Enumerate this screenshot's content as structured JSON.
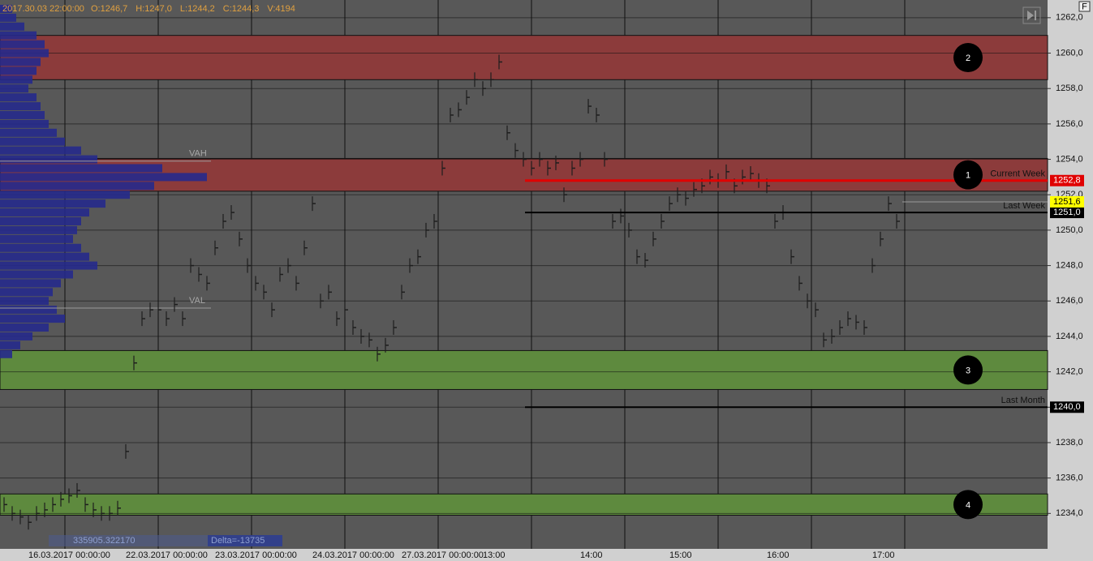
{
  "chart_data": {
    "type": "price-bars",
    "header": "2017.30.03 22:00:00",
    "info_labels": [
      "O:1246,7",
      "H:1247,0",
      "L:1244,2",
      "C:1244,3",
      "V:4194"
    ],
    "ylim": [
      1232,
      1263
    ],
    "yticks": [
      {
        "value": 1234,
        "label": "1234,0"
      },
      {
        "value": 1236,
        "label": "1236,0"
      },
      {
        "value": 1238,
        "label": "1238,0"
      },
      {
        "value": 1240,
        "label": "1240,0"
      },
      {
        "value": 1242,
        "label": "1242,0"
      },
      {
        "value": 1244,
        "label": "1244,0"
      },
      {
        "value": 1246,
        "label": "1246,0"
      },
      {
        "value": 1248,
        "label": "1248,0"
      },
      {
        "value": 1250,
        "label": "1250,0"
      },
      {
        "value": 1252,
        "label": "1252,0"
      },
      {
        "value": 1254,
        "label": "1254,0"
      },
      {
        "value": 1256,
        "label": "1256,0"
      },
      {
        "value": 1258,
        "label": "1258,0"
      },
      {
        "value": 1260,
        "label": "1260,0"
      },
      {
        "value": 1262,
        "label": "1262,0"
      }
    ],
    "grid": true,
    "color": "#1e1e1e",
    "categories": [
      null,
      null,
      null,
      "16.03.2017 00:00:00",
      null,
      null,
      null,
      null,
      null,
      null,
      null,
      null,
      null,
      null,
      null,
      "22.03.2017 00:00:00",
      null,
      null,
      null,
      null,
      null,
      null,
      null,
      null,
      null,
      null,
      "23.03.2017 00:00:00",
      null,
      null,
      null,
      null,
      null,
      null,
      null,
      null,
      null,
      null,
      null,
      "24.03.2017 00:00:00",
      null,
      null,
      null,
      null,
      null,
      null,
      null,
      null,
      null,
      null,
      "27.03.2017 00:00:00",
      null,
      null,
      null,
      null,
      null,
      null,
      null,
      null,
      null,
      "13:00",
      null,
      null,
      null,
      null,
      null,
      null,
      null,
      null,
      null,
      null,
      null,
      "14:00",
      null,
      null,
      null,
      null,
      null,
      null,
      null,
      null,
      null,
      null,
      "15:00",
      null,
      null,
      null,
      null,
      null,
      null,
      null,
      null,
      null,
      null,
      null,
      "16:00",
      null,
      null,
      null,
      null,
      null,
      null,
      null,
      null,
      null,
      null,
      null,
      null,
      "17:00",
      null,
      null,
      null
    ],
    "values": [
      1234.5,
      1234,
      1233.8,
      1233.5,
      1234,
      1234.2,
      1234.5,
      1234.8,
      1235,
      1235.3,
      1234.5,
      1234.2,
      1234,
      1234,
      1234.3,
      1237.5,
      1242.5,
      1245,
      1245.5,
      1245.5,
      1245,
      1245.8,
      1245,
      1248,
      1247.5,
      1247,
      1249,
      1250.5,
      1251,
      1249.5,
      1248,
      1247,
      1246.5,
      1245.5,
      1247.5,
      1248,
      1247,
      1249,
      1251.5,
      1246,
      1246.5,
      1245,
      1245.5,
      1244.5,
      1244,
      1243.8,
      1243,
      1243.5,
      1244.5,
      1246.5,
      1248,
      1248.5,
      1250,
      1250.5,
      1253.5,
      1256.5,
      1256.8,
      1257.5,
      1258.5,
      1258,
      1258.5,
      1259.5,
      1255.5,
      1254.5,
      1254,
      1253.5,
      1254,
      1253.5,
      1253.8,
      1252,
      1253.5,
      1254,
      1257,
      1256.5,
      1254,
      1250.5,
      1250.8,
      1250,
      1248.5,
      1248.3,
      1249.5,
      1250.5,
      1251.5,
      1252,
      1251.8,
      1252.3,
      1252.5,
      1253,
      1252.8,
      1253.3,
      1252.5,
      1253,
      1253.2,
      1252.8,
      1252.5,
      1250.5,
      1251,
      1248.5,
      1247,
      1246,
      1245.5,
      1243.8,
      1244,
      1244.5,
      1245,
      1244.8,
      1244.5,
      1248,
      1249.5,
      1251.5,
      1250.5
    ],
    "zones": [
      {
        "label": "2",
        "color": "#8c3b3b",
        "range": [
          1258.5,
          1261
        ]
      },
      {
        "label": "1",
        "color": "#8c3b3b",
        "range": [
          1252.2,
          1254.05
        ]
      },
      {
        "label": "3",
        "color": "#5e8a3e",
        "range": [
          1241,
          1243.2
        ]
      },
      {
        "label": "4",
        "color": "#5e8a3e",
        "range": [
          1233.9,
          1235.1
        ]
      }
    ],
    "levels": [
      {
        "name": "Current Week",
        "value": 1252.8,
        "value_label": "1252,8",
        "color": "#e00000"
      },
      {
        "name": "Last Week",
        "value": 1251,
        "value_label": "1251,0",
        "color": "#000000"
      },
      {
        "name": "Last Month",
        "value": 1240,
        "value_label": "1240,0",
        "color": "#000000"
      }
    ],
    "current_price": {
      "value": 1251.6,
      "label": "1251,6",
      "color": "#ffff00"
    },
    "value_area": [
      {
        "label": "VAH",
        "value": 1253.9
      },
      {
        "label": "VAL",
        "value": 1245.6
      }
    ],
    "profile_color": "#262a8c",
    "profile_prices": [
      1262.5,
      1262,
      1261.5,
      1261,
      1260.5,
      1260,
      1259.5,
      1259,
      1258.5,
      1258,
      1257.5,
      1257,
      1256.5,
      1256,
      1255.5,
      1255,
      1254.5,
      1254,
      1253.5,
      1253,
      1252.5,
      1252,
      1251.5,
      1251,
      1250.5,
      1250,
      1249.5,
      1249,
      1248.5,
      1248,
      1247.5,
      1247,
      1246.5,
      1246,
      1245.5,
      1245,
      1244.5,
      1244,
      1243.5,
      1243
    ],
    "profile_values": [
      15,
      20,
      30,
      45,
      55,
      60,
      50,
      45,
      40,
      35,
      45,
      50,
      55,
      60,
      70,
      80,
      100,
      120,
      200,
      255,
      190,
      160,
      130,
      110,
      100,
      95,
      90,
      100,
      110,
      120,
      90,
      75,
      65,
      60,
      70,
      80,
      60,
      40,
      25,
      15
    ],
    "footer_labels": [
      "335905.322170",
      "Delta=-13735"
    ]
  }
}
